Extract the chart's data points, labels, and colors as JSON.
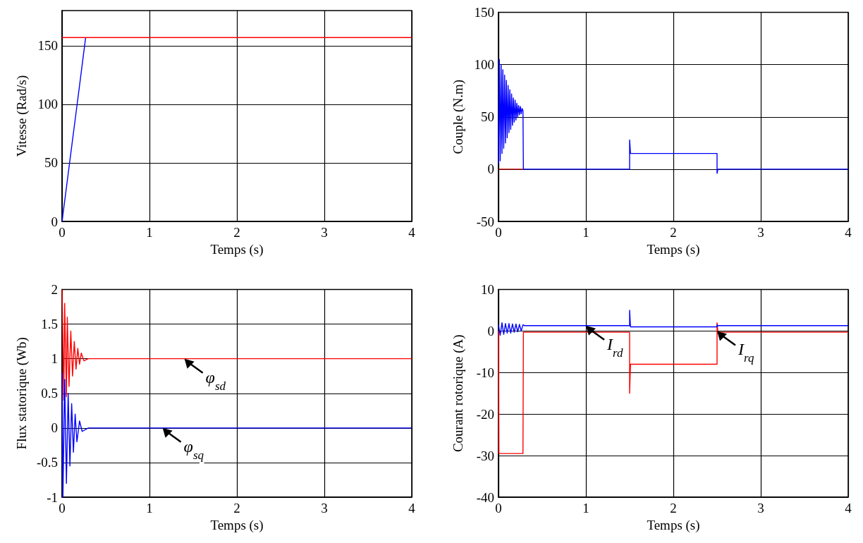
{
  "chart_data": [
    {
      "type": "line",
      "xlabel": "Temps (s)",
      "ylabel": "Vitesse (Rad/s)",
      "xlim": [
        0,
        4
      ],
      "xticks": [
        0,
        1,
        2,
        3,
        4
      ],
      "ylim": [
        0,
        180
      ],
      "yticks": [
        0,
        50,
        100,
        150
      ],
      "grid": true,
      "series": [
        {
          "color": "#0000ff",
          "x": [
            0,
            0.05,
            0.1,
            0.15,
            0.2,
            0.27
          ],
          "values": [
            0,
            29,
            58,
            87,
            116,
            157
          ]
        },
        {
          "color": "#ff0000",
          "x": [
            0,
            4
          ],
          "values": [
            157,
            157
          ]
        }
      ]
    },
    {
      "type": "line",
      "xlabel": "Temps (s)",
      "ylabel": "Couple (N.m)",
      "xlim": [
        0,
        4
      ],
      "xticks": [
        0,
        1,
        2,
        3,
        4
      ],
      "ylim": [
        -50,
        150
      ],
      "yticks": [
        -50,
        0,
        50,
        100,
        150
      ],
      "grid": true,
      "series": [
        {
          "color": "#cc0000",
          "x": [
            0,
            0.28
          ],
          "values": [
            0,
            0
          ]
        },
        {
          "color": "#0000ff",
          "x": [
            0,
            0.01,
            0.02,
            0.03,
            0.04,
            0.05,
            0.06,
            0.07,
            0.08,
            0.09,
            0.1,
            0.11,
            0.12,
            0.13,
            0.14,
            0.15,
            0.16,
            0.17,
            0.18,
            0.19,
            0.2,
            0.21,
            0.22,
            0.23,
            0.24,
            0.25,
            0.26,
            0.27,
            0.28,
            0.285,
            1.5,
            1.5,
            1.51,
            2.5,
            2.5,
            2.51,
            4
          ],
          "values": [
            5,
            105,
            8,
            100,
            15,
            95,
            20,
            90,
            25,
            85,
            30,
            80,
            35,
            76,
            38,
            72,
            42,
            68,
            45,
            66,
            47,
            63,
            50,
            61,
            52,
            60,
            53,
            58,
            56,
            0,
            0,
            28,
            15,
            15,
            -4,
            0,
            0
          ]
        }
      ]
    },
    {
      "type": "line",
      "xlabel": "Temps (s)",
      "ylabel": "Flux statorique (Wb)",
      "xlim": [
        0,
        4
      ],
      "xticks": [
        0,
        1,
        2,
        3,
        4
      ],
      "ylim": [
        -1,
        2
      ],
      "yticks": [
        -1,
        -0.5,
        0,
        0.5,
        1,
        1.5,
        2
      ],
      "grid": true,
      "series": [
        {
          "color": "#ff0000",
          "x": [
            0,
            0.02,
            0.03,
            0.05,
            0.06,
            0.08,
            0.1,
            0.12,
            0.14,
            0.16,
            0.18,
            0.2,
            0.22,
            0.25,
            0.3,
            4
          ],
          "values": [
            2,
            0.4,
            1.8,
            0.45,
            1.6,
            0.6,
            1.4,
            0.75,
            1.25,
            0.85,
            1.15,
            0.92,
            1.08,
            0.97,
            1,
            1
          ]
        },
        {
          "color": "#0000ff",
          "x": [
            0,
            0.01,
            0.03,
            0.05,
            0.07,
            0.09,
            0.11,
            0.13,
            0.15,
            0.17,
            0.2,
            0.23,
            0.3,
            4
          ],
          "values": [
            0.8,
            -1,
            0.7,
            -0.8,
            0.5,
            -0.55,
            0.35,
            -0.35,
            0.2,
            -0.2,
            0.1,
            -0.05,
            0,
            0
          ]
        }
      ],
      "annotations": [
        {
          "text": "φ$_{sd}$",
          "x": 1.4,
          "y": 1
        },
        {
          "text": "φ$_{sq}$",
          "x": 1.15,
          "y": 0
        }
      ]
    },
    {
      "type": "line",
      "xlabel": "Temps (s)",
      "ylabel": "Courant rotorique (A)",
      "xlim": [
        0,
        4
      ],
      "xticks": [
        0,
        1,
        2,
        3,
        4
      ],
      "ylim": [
        -40,
        10
      ],
      "yticks": [
        -40,
        -30,
        -20,
        -10,
        0,
        10
      ],
      "grid": true,
      "series": [
        {
          "color": "#ff0000",
          "x": [
            0,
            0.005,
            0.28,
            0.285,
            1.5,
            1.5,
            1.51,
            2.5,
            2.5,
            2.51,
            4
          ],
          "values": [
            0,
            -29.5,
            -29.5,
            -0.3,
            -0.3,
            -15,
            -8,
            -8,
            2,
            -0.3,
            -0.3
          ]
        },
        {
          "color": "#0000ff",
          "x": [
            0,
            0.02,
            0.04,
            0.06,
            0.08,
            0.1,
            0.12,
            0.14,
            0.16,
            0.18,
            0.2,
            0.22,
            0.24,
            0.26,
            0.28,
            0.3,
            1.5,
            1.5,
            1.51,
            2.5,
            2.5,
            2.51,
            4
          ],
          "values": [
            1.5,
            -1,
            2,
            -0.8,
            1.8,
            -0.5,
            1.8,
            -0.5,
            1.7,
            -0.3,
            1.7,
            -0.2,
            1.6,
            0,
            1.5,
            1.3,
            1.3,
            5,
            1,
            1,
            1.5,
            1.3,
            1.3
          ]
        }
      ],
      "annotations": [
        {
          "text": "I$_{rd}$",
          "x": 1,
          "y": 1.3
        },
        {
          "text": "I$_{rq}$",
          "x": 2.5,
          "y": 0
        }
      ]
    }
  ]
}
